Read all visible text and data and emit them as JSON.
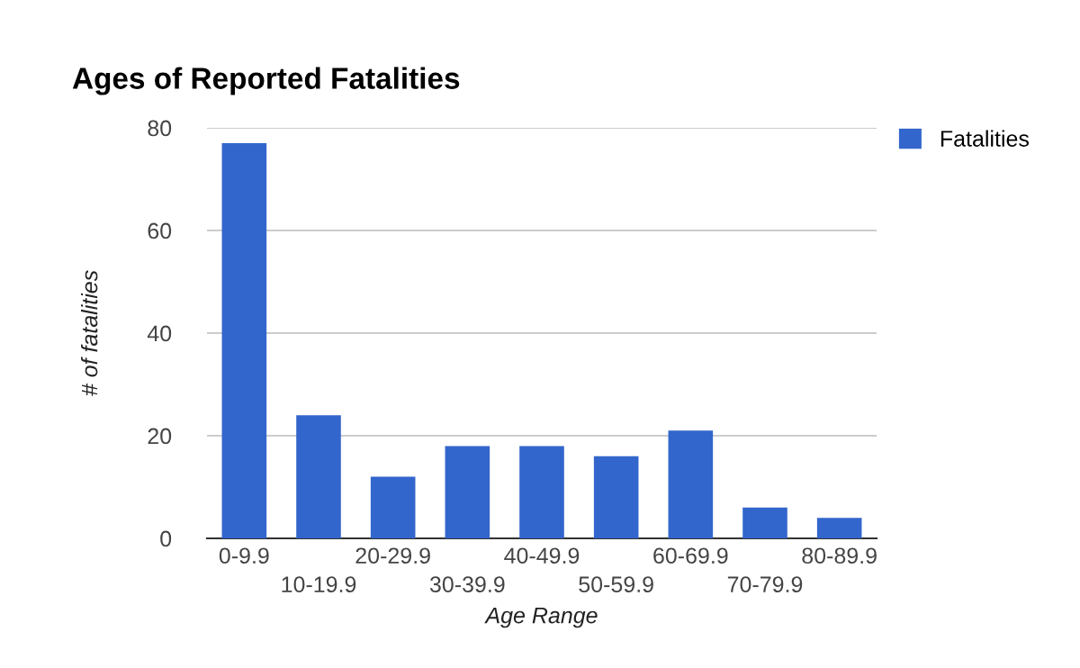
{
  "chart_data": {
    "type": "bar",
    "title": "Ages of Reported Fatalities",
    "xlabel": "Age Range",
    "ylabel": "# of fatalities",
    "categories": [
      "0-9.9",
      "10-19.9",
      "20-29.9",
      "30-39.9",
      "40-49.9",
      "50-59.9",
      "60-69.9",
      "70-79.9",
      "80-89.9"
    ],
    "series": [
      {
        "name": "Fatalities",
        "color": "#3366cc",
        "values": [
          77,
          24,
          12,
          18,
          18,
          16,
          21,
          6,
          4
        ]
      }
    ],
    "ylim": [
      0,
      80
    ],
    "yticks": [
      0,
      20,
      40,
      60,
      80
    ],
    "grid": "y",
    "legend": "top right"
  }
}
